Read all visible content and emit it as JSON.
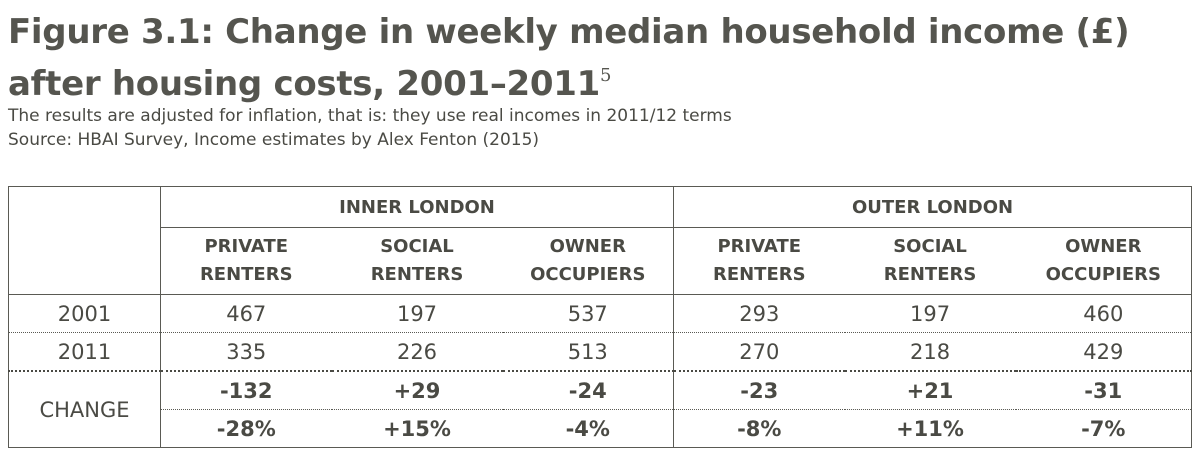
{
  "title": "Figure 3.1: Change in weekly median household income (£) after housing costs, 2001–2011",
  "title_footnote": "5",
  "subtitle_lines": [
    "The results are adjusted for inflation, that is: they use real incomes in 2011/12 terms",
    "Source: HBAI Survey, Income estimates by Alex Fenton (2015)"
  ],
  "chart_data": {
    "type": "table",
    "groups": [
      "INNER LONDON",
      "OUTER LONDON"
    ],
    "columns": [
      [
        "PRIVATE",
        "RENTERS"
      ],
      [
        "SOCIAL",
        "RENTERS"
      ],
      [
        "OWNER",
        "OCCUPIERS"
      ],
      [
        "PRIVATE",
        "RENTERS"
      ],
      [
        "SOCIAL",
        "RENTERS"
      ],
      [
        "OWNER",
        "OCCUPIERS"
      ]
    ],
    "rows": [
      {
        "label": "2001",
        "values": [
          "467",
          "197",
          "537",
          "293",
          "197",
          "460"
        ]
      },
      {
        "label": "2011",
        "values": [
          "335",
          "226",
          "513",
          "270",
          "218",
          "429"
        ]
      }
    ],
    "change_label": "CHANGE",
    "change_absolute": [
      "-132",
      "+29",
      "-24",
      "-23",
      "+21",
      "-31"
    ],
    "change_percent": [
      "-28%",
      "+15%",
      "-4%",
      "-8%",
      "+11%",
      "-7%"
    ]
  }
}
